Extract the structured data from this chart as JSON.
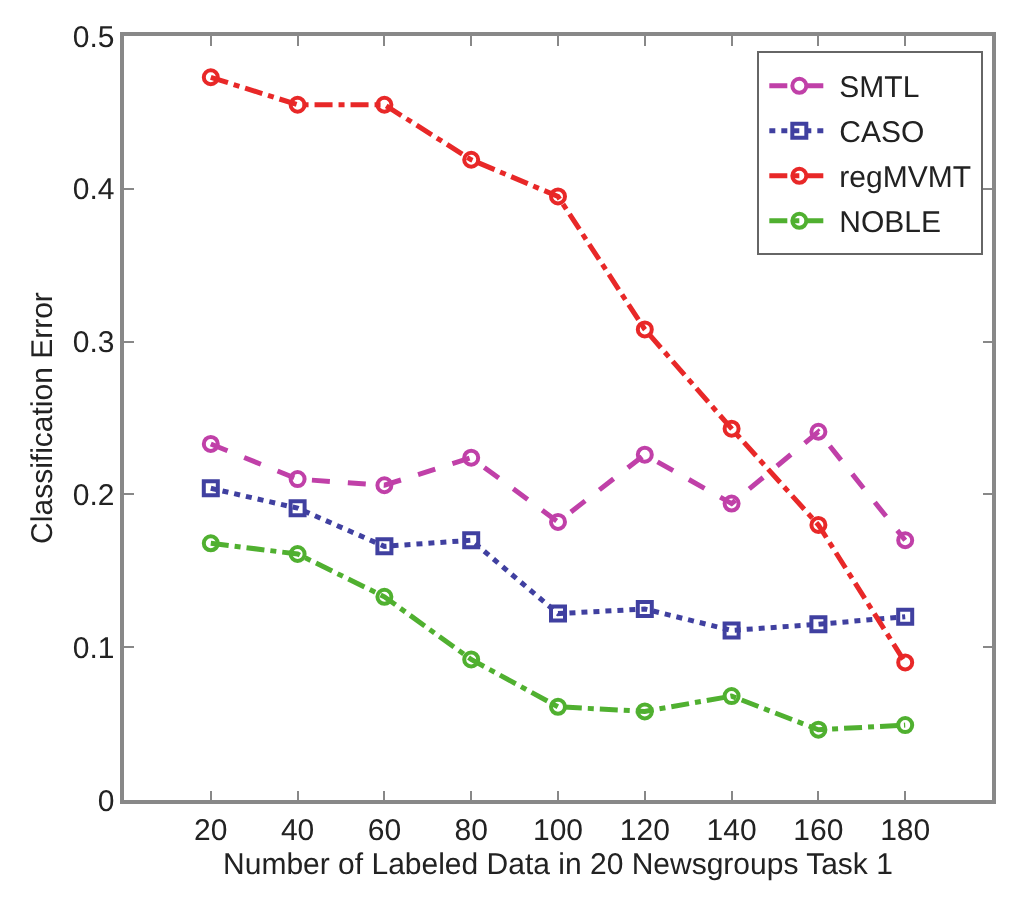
{
  "chart_data": {
    "type": "line",
    "xlabel": "Number of Labeled Data in 20 Newsgroups Task 1",
    "ylabel": "Classification Error",
    "x": [
      20,
      40,
      60,
      80,
      100,
      120,
      140,
      160,
      180
    ],
    "xlim": [
      0,
      200
    ],
    "xticks": [
      20,
      40,
      60,
      80,
      100,
      120,
      140,
      160,
      180
    ],
    "ylim": [
      0,
      0.5
    ],
    "yticks": [
      0,
      0.1,
      0.2,
      0.3,
      0.4,
      0.5
    ],
    "legend": "top right",
    "series": [
      {
        "name": "SMTL",
        "color": "#c040a8",
        "marker": "circle",
        "line_style": "dashed",
        "values": [
          0.233,
          0.21,
          0.206,
          0.224,
          0.182,
          0.226,
          0.194,
          0.241,
          0.17
        ]
      },
      {
        "name": "CASO",
        "color": "#4040a0",
        "marker": "square",
        "line_style": "dotted",
        "values": [
          0.204,
          0.191,
          0.166,
          0.17,
          0.122,
          0.125,
          0.111,
          0.115,
          0.12
        ]
      },
      {
        "name": "regMVMT",
        "color": "#e82828",
        "marker": "circle",
        "line_style": "dashdot",
        "values": [
          0.473,
          0.455,
          0.455,
          0.419,
          0.395,
          0.308,
          0.243,
          0.18,
          0.09
        ]
      },
      {
        "name": "NOBLE",
        "color": "#50b030",
        "marker": "circle",
        "line_style": "dashdot",
        "values": [
          0.168,
          0.161,
          0.133,
          0.092,
          0.061,
          0.058,
          0.068,
          0.046,
          0.049
        ]
      }
    ]
  }
}
